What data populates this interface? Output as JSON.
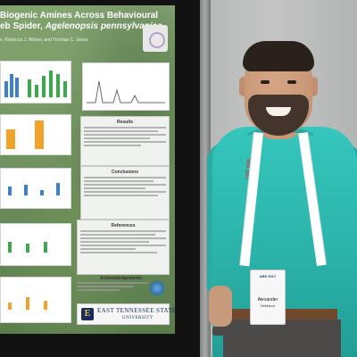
{
  "scene": {
    "description_colors": {
      "poster_background": "#6f9160",
      "shirt": "#2cb4ab",
      "board": "#121212",
      "wall": "#bfc1c0"
    }
  },
  "poster": {
    "title_line1": "Biogenic Amines Across Behavioural",
    "title_line2_prefix": "eb Spider, ",
    "title_species": "Agelenopsis pennsylvanica",
    "authors": "s, Rebecca J. Wilson, and Thomas C. Jones",
    "sections": {
      "results": "Results",
      "conclusions": "Conclusions",
      "references": "References",
      "acknowledgements": "Acknowledgements"
    },
    "university": {
      "emblem_letter": "E",
      "name": "EAST TENNESSEE STATE",
      "sub": "UNIVERSITY"
    }
  },
  "person": {
    "lanyard_text": "ABS 2017",
    "badge": {
      "event": "ABS 2017",
      "first_name": "Alexander",
      "last_name": "DeMarco"
    }
  }
}
